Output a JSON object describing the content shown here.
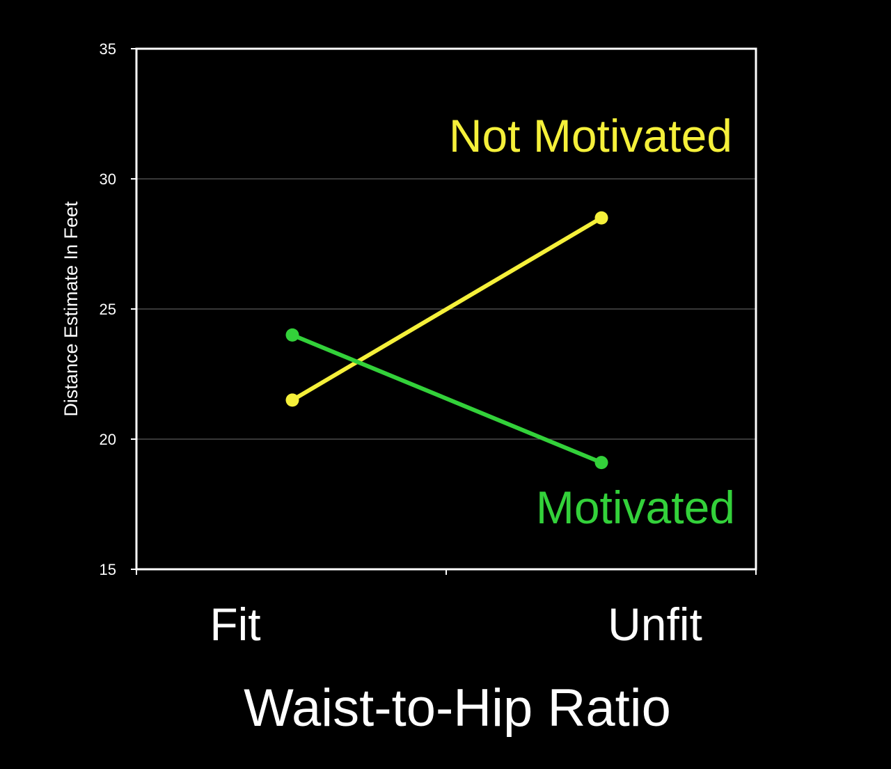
{
  "chart_data": {
    "type": "line",
    "categories": [
      "Fit",
      "Unfit"
    ],
    "series": [
      {
        "name": "Not Motivated",
        "values": [
          21.5,
          28.5
        ],
        "color": "#f5f03a"
      },
      {
        "name": "Motivated",
        "values": [
          24.0,
          19.1
        ],
        "color": "#33d13a"
      }
    ],
    "xlabel": "Waist-to-Hip Ratio",
    "ylabel": "Distance Estimate In Feet",
    "ylim": [
      15,
      35
    ],
    "yticks": [
      "15",
      "20",
      "25",
      "30",
      "35"
    ],
    "grid": true,
    "legend": "inline labels beside lines",
    "background": "#000000"
  }
}
